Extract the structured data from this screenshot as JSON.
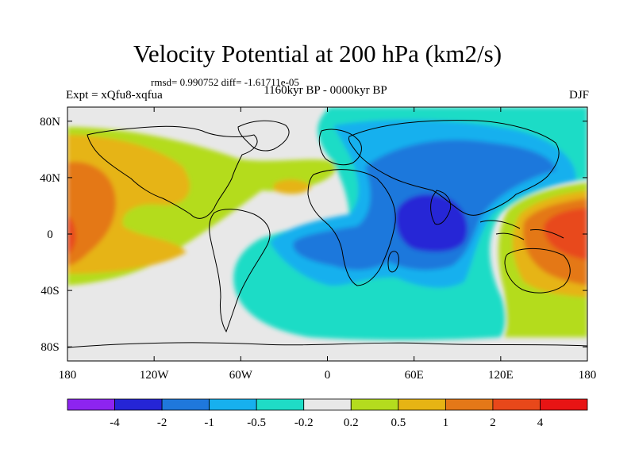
{
  "title": "Velocity Potential at 200 hPa (km2/s)",
  "stats": "rmsd= 0.990752 diff= -1.61711e-05",
  "period": "1160kyr BP - 0000kyr BP",
  "experiment": "Expt = xQfu8-xqfua",
  "season": "DJF",
  "map": {
    "projection": "cylindrical-equidistant",
    "lon_range": [
      -180,
      180
    ],
    "lat_range": [
      -90,
      90
    ],
    "x_ticks": [
      {
        "lon": -180,
        "label": "180"
      },
      {
        "lon": -120,
        "label": "120W"
      },
      {
        "lon": -60,
        "label": "60W"
      },
      {
        "lon": 0,
        "label": "0"
      },
      {
        "lon": 60,
        "label": "60E"
      },
      {
        "lon": 120,
        "label": "120E"
      },
      {
        "lon": 180,
        "label": "180"
      }
    ],
    "y_ticks": [
      {
        "lat": 80,
        "label": "80N"
      },
      {
        "lat": 40,
        "label": "40N"
      },
      {
        "lat": 0,
        "label": "0"
      },
      {
        "lat": -40,
        "label": "40S"
      },
      {
        "lat": -80,
        "label": "80S"
      }
    ]
  },
  "colorbar": {
    "boundaries": [
      "-4",
      "-2",
      "-1",
      "-0.5",
      "-0.2",
      "0.2",
      "0.5",
      "1",
      "2",
      "4"
    ],
    "colors": [
      "#8d24f0",
      "#2525d6",
      "#1f78dc",
      "#17b0ee",
      "#1fdcc6",
      "#e8e8e8",
      "#b4dc1e",
      "#e6b414",
      "#e47818",
      "#e8481a",
      "#e81414"
    ]
  }
}
